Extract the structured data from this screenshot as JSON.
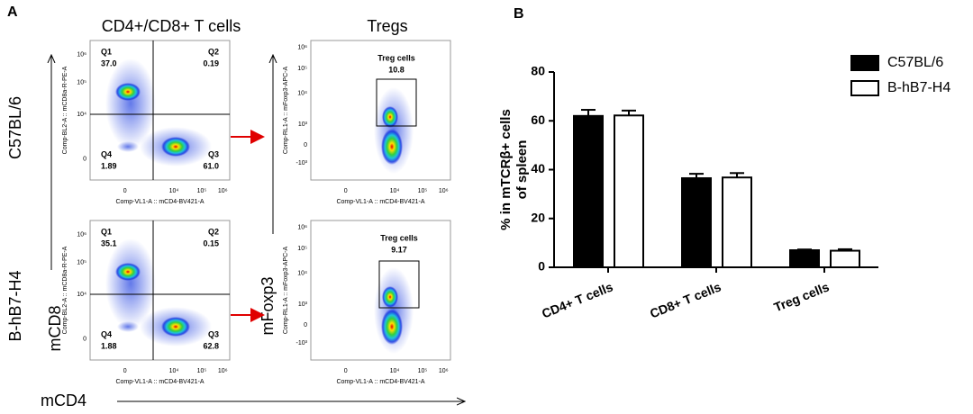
{
  "panel_a": {
    "label": "A",
    "title_left": "CD4+/CD8+ T cells",
    "title_right": "Tregs",
    "row_labels": [
      "C57BL/6",
      "B-hB7-H4"
    ],
    "y_axis_left": "mCD8",
    "y_axis_right": "mFoxp3",
    "x_axis": "mCD4",
    "cd8_yticks": [
      "10⁶",
      "10⁵",
      "10⁴",
      "0"
    ],
    "treg_yticks": [
      "10⁶",
      "10⁵",
      "10⁴",
      "10³",
      "0",
      "-10³"
    ],
    "xticks": [
      "0",
      "10⁴",
      "10⁵",
      "10⁶"
    ],
    "cd8_plots": [
      {
        "y_label": "Comp-BL2-A :: mCD8a-R-PE-A",
        "x_label": "Comp-VL1-A :: mCD4-BV421-A",
        "quadrants": [
          [
            "Q1",
            "37.0"
          ],
          [
            "Q2",
            "0.19"
          ],
          [
            "Q4",
            "1.89"
          ],
          [
            "Q3",
            "61.0"
          ]
        ]
      },
      {
        "y_label": "Comp-BL2-A :: mCD8a-R-PE-A",
        "x_label": "Comp-VL1-A :: mCD4-BV421-A",
        "quadrants": [
          [
            "Q1",
            "35.1"
          ],
          [
            "Q2",
            "0.15"
          ],
          [
            "Q4",
            "1.88"
          ],
          [
            "Q3",
            "62.8"
          ]
        ]
      }
    ],
    "treg_plots": [
      {
        "y_label": "Comp-RL1-A :: mFoxp3-APC-A",
        "x_label": "Comp-VL1-A :: mCD4-BV421-A",
        "gate": "Treg cells",
        "value": "10.8"
      },
      {
        "y_label": "Comp-RL1-A :: mFoxp3-APC-A",
        "x_label": "Comp-VL1-A :: mCD4-BV421-A",
        "gate": "Treg cells",
        "value": "9.17"
      }
    ]
  },
  "chart_data": {
    "type": "bar",
    "label": "B",
    "y_label": [
      "% in mTCRβ+ cells",
      "of spleen"
    ],
    "categories": [
      "CD4+ T cells",
      "CD8+ T cells",
      "Treg cells"
    ],
    "series": [
      {
        "name": "C57BL/6",
        "color": "#000000",
        "values": [
          62,
          36.5,
          7
        ],
        "errors": [
          2.5,
          1.8,
          0.3
        ]
      },
      {
        "name": "B-hB7-H4",
        "color": "#ffffff",
        "values": [
          62.2,
          36.8,
          6.8
        ],
        "errors": [
          2,
          1.8,
          0.6
        ]
      }
    ],
    "ylim": [
      0,
      80
    ],
    "yticks": [
      0,
      20,
      40,
      60,
      80
    ]
  }
}
